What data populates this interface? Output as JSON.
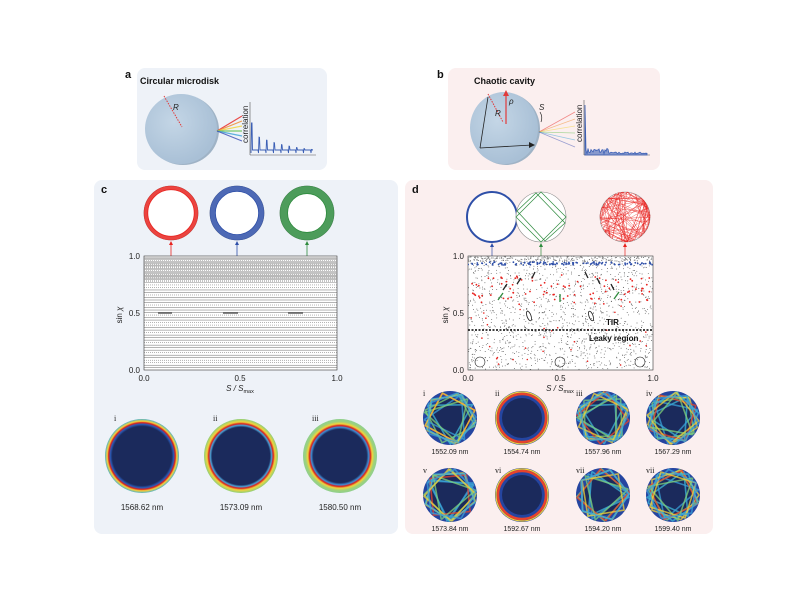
{
  "panels": {
    "a": {
      "label": "a",
      "title": "Circular microdisk",
      "radius_symbol": "R",
      "plot_ylabel": "correlation"
    },
    "b": {
      "label": "b",
      "title": "Chaotic cavity",
      "radius_symbol": "R",
      "rho_symbol": "ρ",
      "arc_symbol": "S",
      "plot_ylabel": "correlation"
    },
    "c": {
      "label": "c",
      "ylabel_main": "sin ",
      "ylabel_sym": "χ",
      "xlabel_main": "S / S",
      "xlabel_sub": "max",
      "yticks": [
        "0.0",
        "0.5",
        "1.0"
      ],
      "xticks": [
        "0.0",
        "0.5",
        "1.0"
      ],
      "orbit_colors": [
        "#e8231f",
        "#2e4fa8",
        "#2e8b3e"
      ],
      "modes": [
        {
          "numeral": "i",
          "wavelength": "1568.62 nm"
        },
        {
          "numeral": "ii",
          "wavelength": "1573.09 nm"
        },
        {
          "numeral": "iii",
          "wavelength": "1580.50 nm"
        }
      ]
    },
    "d": {
      "label": "d",
      "ylabel_main": "sin ",
      "ylabel_sym": "χ",
      "xlabel_main": "S / S",
      "xlabel_sub": "max",
      "yticks": [
        "0.0",
        "0.5",
        "1.0"
      ],
      "xticks": [
        "0.0",
        "0.5",
        "1.0"
      ],
      "tir_label": "TIR",
      "leaky_label": "Leaky region",
      "orbit_colors": [
        "#2e4fa8",
        "#2e8b3e",
        "#e8231f"
      ],
      "modes": [
        {
          "numeral": "i",
          "wavelength": "1552.09 nm"
        },
        {
          "numeral": "ii",
          "wavelength": "1554.74 nm"
        },
        {
          "numeral": "iii",
          "wavelength": "1557.96 nm"
        },
        {
          "numeral": "iv",
          "wavelength": "1567.29 nm"
        },
        {
          "numeral": "v",
          "wavelength": "1573.84 nm"
        },
        {
          "numeral": "vi",
          "wavelength": "1592.67 nm"
        },
        {
          "numeral": "vii",
          "wavelength": "1594.20 nm"
        },
        {
          "numeral": "vii",
          "wavelength": "1599.40 nm"
        }
      ]
    }
  },
  "colors": {
    "blue_panel": "#eef2f8",
    "pink_panel": "#fbefef",
    "disk": "#b8cde0",
    "mode_bg": "#1b2a5c"
  }
}
